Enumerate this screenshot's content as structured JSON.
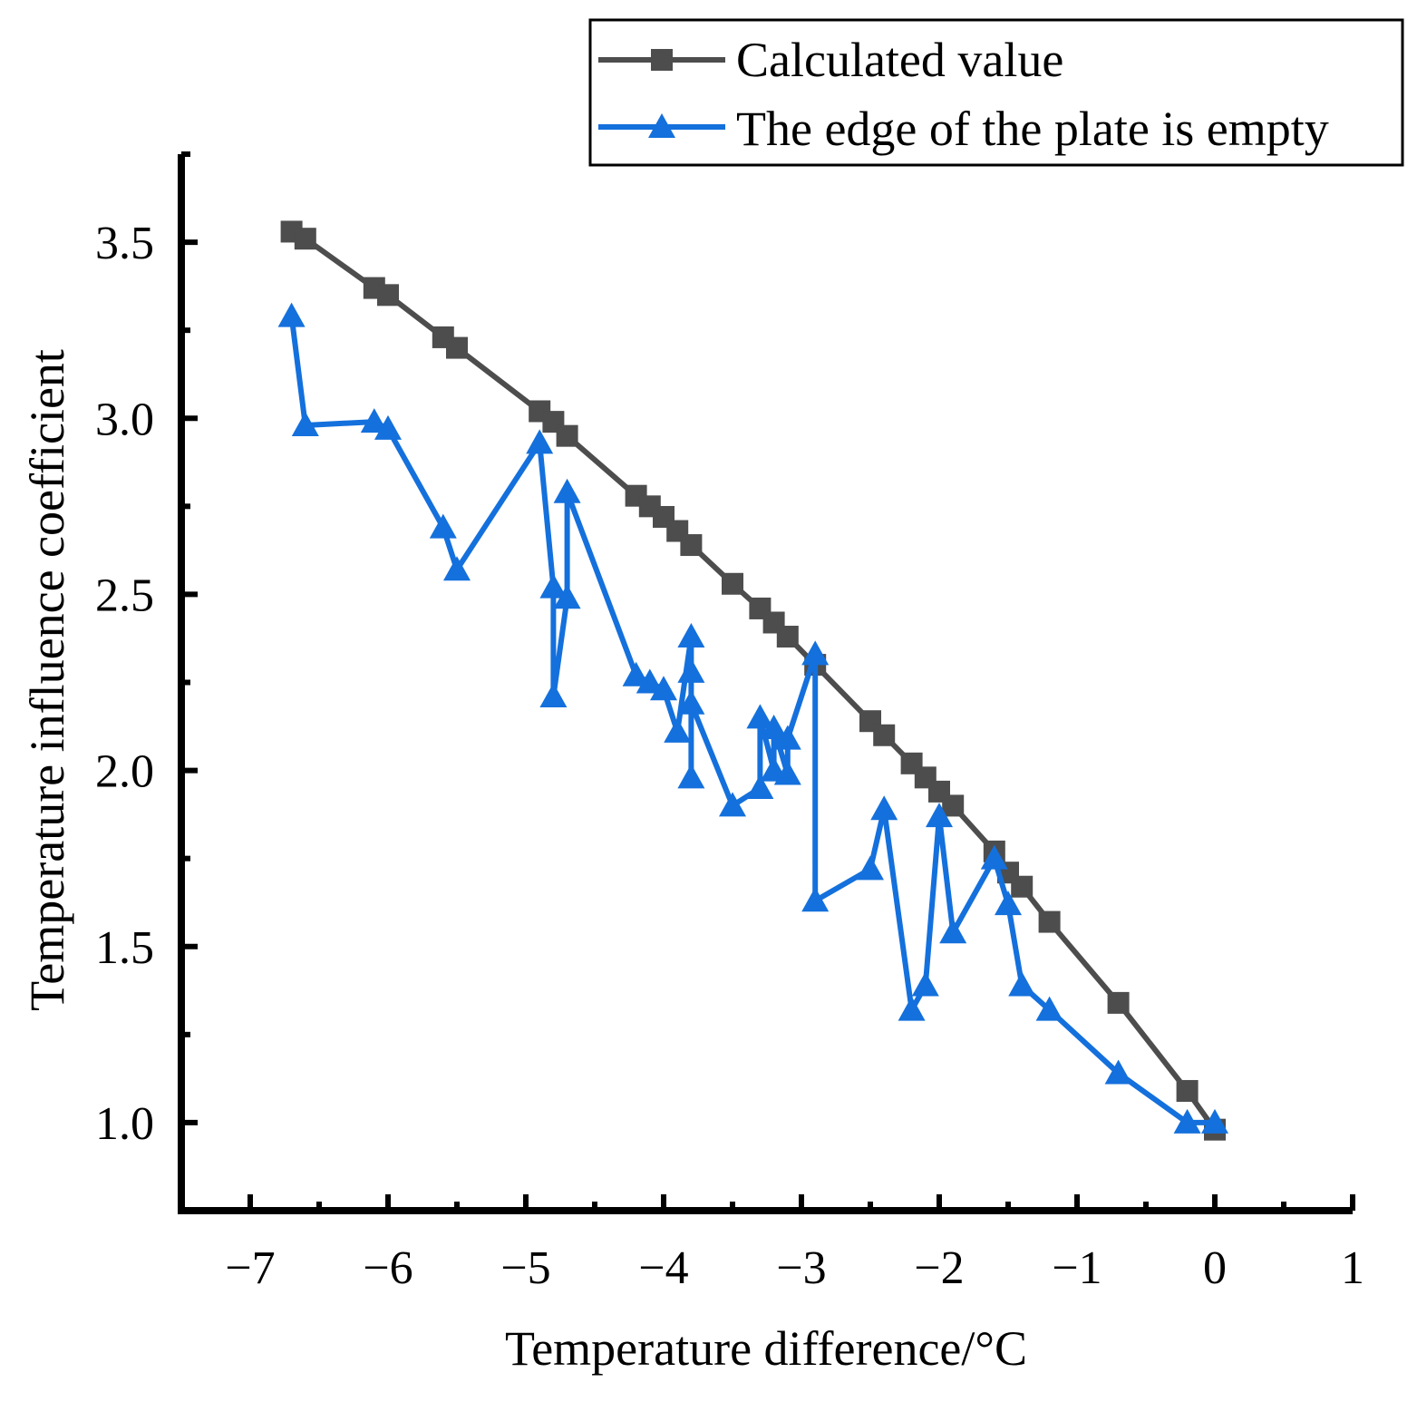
{
  "chart_data": {
    "type": "line",
    "xlabel": "Temperature difference/°C",
    "ylabel": "Temperature influence coefficient",
    "xlim": [
      -7.5,
      1
    ],
    "ylim": [
      0.75,
      3.75
    ],
    "x_ticks": [
      -7,
      -6,
      -5,
      -4,
      -3,
      -2,
      -1,
      0,
      1
    ],
    "x_tick_labels": [
      "−7",
      "−6",
      "−5",
      "−4",
      "−3",
      "−2",
      "−1",
      "0",
      "1"
    ],
    "y_ticks": [
      1.0,
      1.5,
      2.0,
      2.5,
      3.0,
      3.5
    ],
    "y_tick_labels": [
      "1.0",
      "1.5",
      "2.0",
      "2.5",
      "3.0",
      "3.5"
    ],
    "grid": false,
    "legend_position": "top-right",
    "series": [
      {
        "name": "Calculated value",
        "color": "#4d4d4d",
        "marker": "square",
        "x": [
          -6.7,
          -6.6,
          -6.1,
          -6.0,
          -5.6,
          -5.5,
          -4.9,
          -4.8,
          -4.7,
          -4.2,
          -4.1,
          -4.0,
          -3.9,
          -3.8,
          -3.5,
          -3.3,
          -3.2,
          -3.1,
          -2.9,
          -2.5,
          -2.4,
          -2.2,
          -2.1,
          -2.0,
          -1.9,
          -1.6,
          -1.5,
          -1.4,
          -1.2,
          -0.7,
          -0.2,
          0.0
        ],
        "y": [
          3.53,
          3.51,
          3.37,
          3.35,
          3.23,
          3.2,
          3.02,
          2.99,
          2.95,
          2.78,
          2.75,
          2.72,
          2.68,
          2.64,
          2.53,
          2.46,
          2.42,
          2.38,
          2.3,
          2.14,
          2.1,
          2.02,
          1.98,
          1.94,
          1.9,
          1.77,
          1.71,
          1.67,
          1.57,
          1.34,
          1.09,
          0.98
        ]
      },
      {
        "name": "The edge of the plate is empty",
        "color": "#1470dc",
        "marker": "triangle",
        "x": [
          -6.7,
          -6.6,
          -6.1,
          -6.0,
          -5.6,
          -5.5,
          -4.9,
          -4.8,
          -4.8,
          -4.7,
          -4.7,
          -4.2,
          -4.1,
          -4.0,
          -3.9,
          -3.8,
          -3.8,
          -3.8,
          -3.8,
          -3.5,
          -3.3,
          -3.3,
          -3.2,
          -3.2,
          -3.1,
          -3.1,
          -2.9,
          -2.9,
          -2.5,
          -2.4,
          -2.2,
          -2.1,
          -2.0,
          -1.9,
          -1.6,
          -1.5,
          -1.4,
          -1.2,
          -0.7,
          -0.2,
          0.0
        ],
        "y": [
          3.29,
          2.98,
          2.99,
          2.97,
          2.69,
          2.57,
          2.93,
          2.52,
          2.21,
          2.49,
          2.79,
          2.27,
          2.25,
          2.23,
          2.11,
          2.38,
          1.98,
          2.28,
          2.19,
          1.9,
          1.95,
          2.15,
          2.0,
          2.12,
          1.99,
          2.09,
          2.33,
          1.63,
          1.72,
          1.89,
          1.32,
          1.39,
          1.87,
          1.54,
          1.75,
          1.62,
          1.39,
          1.32,
          1.14,
          1.0,
          1.0
        ]
      }
    ]
  }
}
